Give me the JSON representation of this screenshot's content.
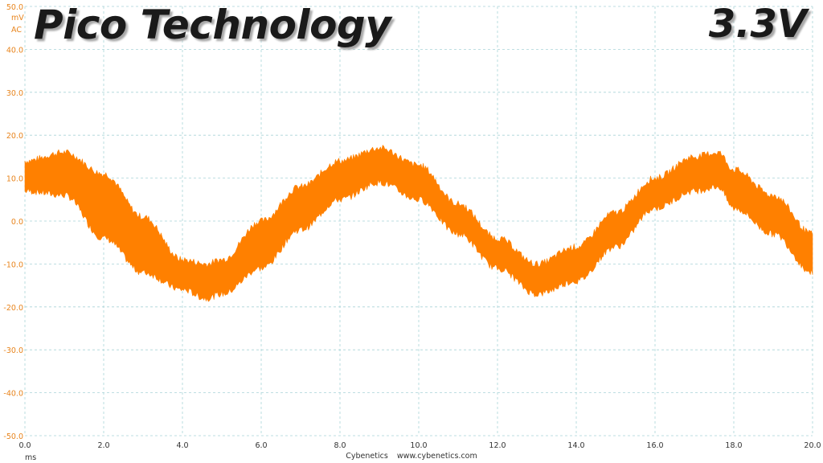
{
  "header": {
    "brand": "Pico Technology",
    "rail": "3.3V"
  },
  "footer": {
    "credit_name": "Cybenetics",
    "credit_url": "www.cybenetics.com"
  },
  "chart_data": {
    "type": "line",
    "xlabel": "ms",
    "ylabel": "mV",
    "coupling": "AC",
    "xlim": [
      0.0,
      20.0
    ],
    "ylim": [
      -50.0,
      50.0
    ],
    "x_ticks": [
      "0.0",
      "2.0",
      "4.0",
      "6.0",
      "8.0",
      "10.0",
      "12.0",
      "14.0",
      "16.0",
      "18.0",
      "20.0"
    ],
    "y_ticks": [
      "50.0",
      "40.0",
      "30.0",
      "20.0",
      "10.0",
      "0.0",
      "-10.0",
      "-20.0",
      "-30.0",
      "-40.0",
      "-50.0"
    ],
    "grid": true,
    "series": [
      {
        "color": "#ff8000",
        "x": [
          0.0,
          1.0,
          2.0,
          3.0,
          4.0,
          4.6,
          5.0,
          6.0,
          7.0,
          8.0,
          9.0,
          10.0,
          11.0,
          12.0,
          13.0,
          14.0,
          15.0,
          16.0,
          17.0,
          17.6,
          18.0,
          19.0,
          20.0
        ],
        "upper": [
          14,
          16,
          11,
          1,
          -9,
          -10,
          -9,
          0,
          8,
          14,
          17,
          13,
          4,
          -4,
          -10,
          -6,
          2,
          10,
          15,
          16,
          12,
          6,
          -3
        ],
        "lower": [
          7,
          6,
          -4,
          -12,
          -16,
          -18,
          -17,
          -11,
          -2,
          5,
          9,
          5,
          -3,
          -11,
          -17,
          -14,
          -6,
          3,
          7,
          8,
          3,
          -3,
          -12
        ]
      }
    ]
  }
}
